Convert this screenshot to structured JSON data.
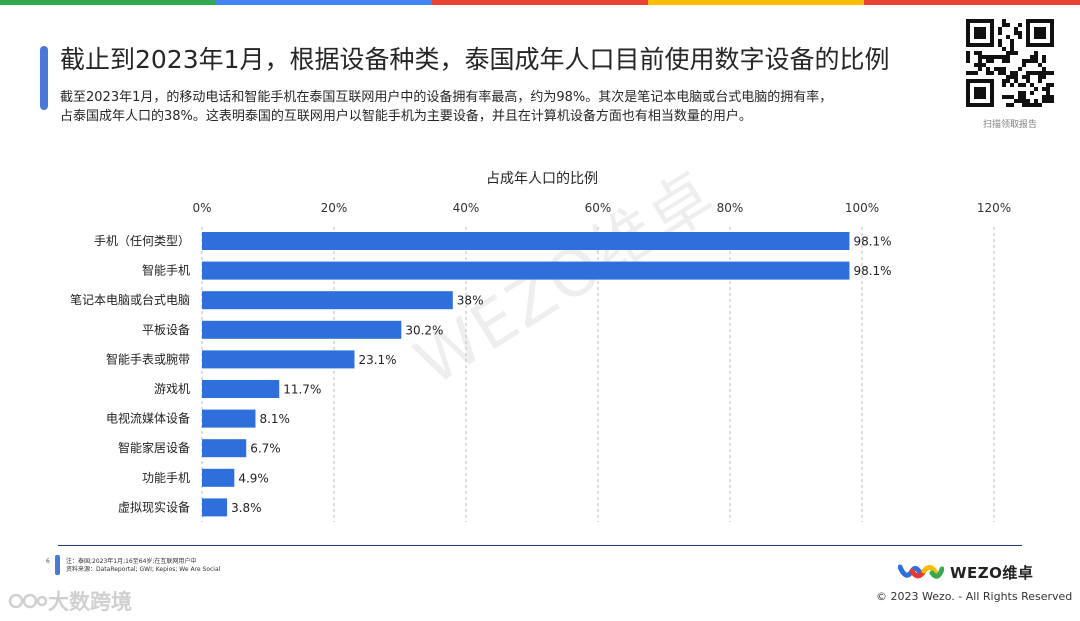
{
  "header": {
    "title": "截止到2023年1月，根据设备种类，泰国成年人口目前使用数字设备的比例",
    "description_line1": "截至2023年1月，的移动电话和智能手机在泰国互联网用户中的设备拥有率最高，约为98%。其次是笔记本电脑或台式电脑的拥有率，",
    "description_line2": "占泰国成年人口的38%。这表明泰国的互联网用户以智能手机为主要设备，并且在计算机设备方面也有相当数量的用户。",
    "qr_caption": "扫描领取报告"
  },
  "top_bar_colors": [
    "#34a853",
    "#4285f4",
    "#ea4335",
    "#fbbc05",
    "#ea4335"
  ],
  "chart_data": {
    "type": "bar",
    "orientation": "horizontal",
    "title": "占成年人口的比例",
    "categories": [
      "手机（任何类型）",
      "智能手机",
      "笔记本电脑或台式电脑",
      "平板设备",
      "智能手表或腕带",
      "游戏机",
      "电视流媒体设备",
      "智能家居设备",
      "功能手机",
      "虚拟现实设备"
    ],
    "values": [
      98.1,
      98.1,
      38,
      30.2,
      23.1,
      11.7,
      8.1,
      6.7,
      4.9,
      3.8
    ],
    "value_labels": [
      "98.1%",
      "98.1%",
      "38%",
      "30.2%",
      "23.1%",
      "11.7%",
      "8.1%",
      "6.7%",
      "4.9%",
      "3.8%"
    ],
    "xlim": [
      0,
      120
    ],
    "x_ticks": [
      0,
      20,
      40,
      60,
      80,
      100,
      120
    ],
    "x_tick_labels": [
      "0%",
      "20%",
      "40%",
      "60%",
      "80%",
      "100%",
      "120%"
    ],
    "axis_position": "top",
    "grid": "dashed vertical",
    "bar_color": "#2f6fdc"
  },
  "watermark": "WEZO维卓",
  "footer": {
    "page_number": "6",
    "note_line1": "注：泰国;2023年1月;16至64岁;在互联网用户中",
    "note_line2": "资料来源：DataReportal; GWI; Kepios; We Are Social",
    "logo_text": "WEZO维卓",
    "copyright": "© 2023 Wezo. - All Rights Reserved",
    "source_watermark": "大数跨境"
  }
}
